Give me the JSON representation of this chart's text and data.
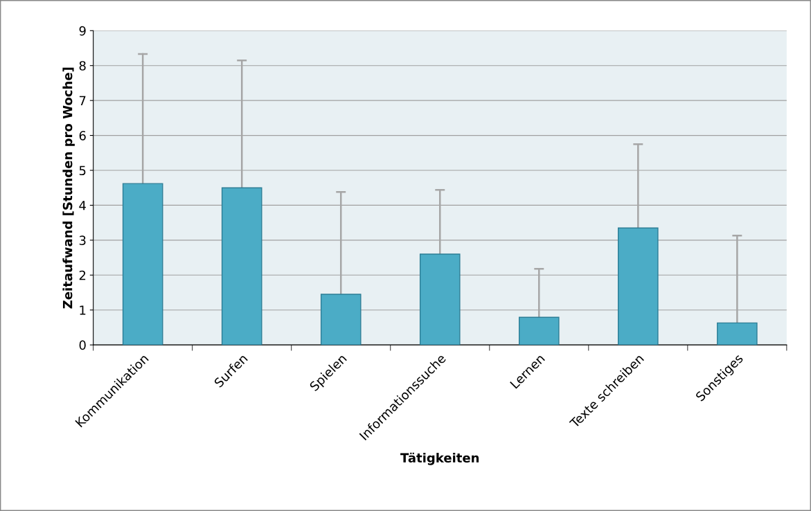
{
  "chart_data": {
    "type": "bar",
    "xlabel": "Tätigkeiten",
    "ylabel": "Zeitaufwand [Stunden pro Woche]",
    "categories": [
      "Kommunikation",
      "Surfen",
      "Spielen",
      "Informationssuche",
      "Lernen",
      "Texte schreiben",
      "Sonstiges"
    ],
    "values": [
      4.62,
      4.5,
      1.45,
      2.6,
      0.79,
      3.35,
      0.63
    ],
    "errors": [
      [
        4.62,
        8.33
      ],
      [
        4.5,
        8.15
      ],
      [
        1.45,
        4.38
      ],
      [
        2.6,
        4.44
      ],
      [
        0.79,
        2.18
      ],
      [
        3.35,
        5.75
      ],
      [
        0.63,
        3.13
      ]
    ],
    "color": "#4bacc6",
    "ylim": [
      0,
      9
    ],
    "yticks": [
      0,
      1,
      2,
      3,
      4,
      5,
      6,
      7,
      8,
      9
    ],
    "grid": "y",
    "legend": false
  }
}
